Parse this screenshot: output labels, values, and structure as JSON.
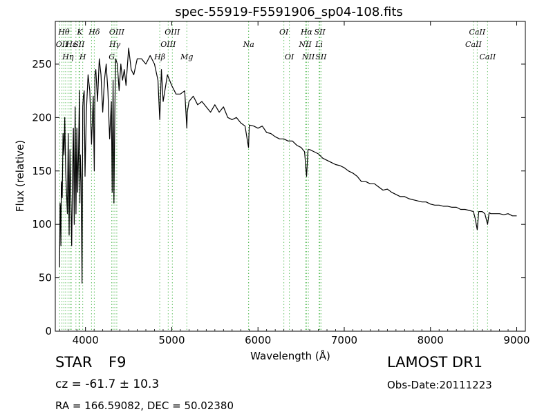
{
  "chart_data": {
    "type": "line",
    "title": "spec-55919-F5591906_sp04-108.fits",
    "xlabel": "Wavelength (Å)",
    "ylabel": "Flux (relative)",
    "xlim": [
      3650,
      9100
    ],
    "ylim": [
      0,
      290
    ],
    "xticks": [
      4000,
      5000,
      6000,
      7000,
      8000,
      9000
    ],
    "yticks": [
      0,
      50,
      100,
      150,
      200,
      250
    ],
    "grid": false,
    "line_color": "#000000",
    "marker_color": "#5fbf5f",
    "series": [
      {
        "x": [
          3700,
          3705,
          3710,
          3715,
          3720,
          3730,
          3740,
          3750,
          3760,
          3770,
          3780,
          3790,
          3800,
          3810,
          3820,
          3830,
          3840,
          3850,
          3860,
          3870,
          3880,
          3890,
          3900,
          3910,
          3920,
          3930,
          3935,
          3940,
          3950,
          3960,
          3968,
          3975,
          3985,
          3995,
          4010,
          4030,
          4050,
          4070,
          4090,
          4102,
          4110,
          4120,
          4140,
          4160,
          4180,
          4200,
          4220,
          4240,
          4260,
          4280,
          4300,
          4310,
          4320,
          4330,
          4340,
          4350,
          4370,
          4390,
          4410,
          4430,
          4450,
          4470,
          4500,
          4530,
          4560,
          4600,
          4650,
          4700,
          4750,
          4800,
          4840,
          4861,
          4880,
          4900,
          4950,
          5000,
          5050,
          5100,
          5150,
          5175,
          5180,
          5200,
          5250,
          5300,
          5350,
          5400,
          5450,
          5500,
          5550,
          5600,
          5650,
          5700,
          5750,
          5800,
          5850,
          5890,
          5900,
          5950,
          6000,
          6050,
          6100,
          6150,
          6200,
          6250,
          6300,
          6350,
          6400,
          6450,
          6500,
          6540,
          6563,
          6580,
          6600,
          6650,
          6700,
          6750,
          6800,
          6850,
          6900,
          6950,
          7000,
          7050,
          7100,
          7150,
          7200,
          7250,
          7300,
          7350,
          7400,
          7450,
          7500,
          7550,
          7600,
          7650,
          7700,
          7750,
          7800,
          7850,
          7900,
          7950,
          8000,
          8050,
          8100,
          8150,
          8200,
          8250,
          8300,
          8350,
          8400,
          8450,
          8498,
          8520,
          8542,
          8560,
          8600,
          8630,
          8662,
          8680,
          8700,
          8750,
          8800,
          8850,
          8900,
          8950,
          9000
        ],
        "y": [
          60,
          120,
          115,
          80,
          140,
          125,
          185,
          165,
          200,
          150,
          130,
          110,
          185,
          90,
          170,
          125,
          80,
          150,
          190,
          100,
          210,
          110,
          190,
          130,
          170,
          225,
          120,
          165,
          140,
          45,
          210,
          220,
          225,
          145,
          205,
          240,
          225,
          175,
          220,
          150,
          240,
          245,
          215,
          255,
          240,
          205,
          235,
          250,
          225,
          180,
          215,
          130,
          235,
          120,
          205,
          255,
          250,
          225,
          250,
          235,
          245,
          230,
          265,
          245,
          240,
          255,
          255,
          250,
          258,
          250,
          235,
          198,
          245,
          215,
          240,
          230,
          222,
          222,
          225,
          190,
          205,
          215,
          220,
          212,
          215,
          210,
          205,
          212,
          205,
          210,
          200,
          198,
          200,
          195,
          192,
          172,
          193,
          192,
          190,
          192,
          186,
          185,
          182,
          180,
          180,
          178,
          178,
          174,
          172,
          168,
          145,
          170,
          170,
          168,
          166,
          162,
          160,
          158,
          156,
          155,
          153,
          150,
          148,
          145,
          140,
          140,
          138,
          138,
          135,
          132,
          133,
          130,
          128,
          126,
          126,
          124,
          123,
          122,
          121,
          121,
          119,
          118,
          118,
          117,
          117,
          116,
          116,
          114,
          114,
          113,
          112,
          105,
          95,
          112,
          112,
          110,
          100,
          111,
          110,
          110,
          110,
          109,
          110,
          108,
          108
        ]
      }
    ],
    "line_markers": {
      "top": [
        {
          "wavelength": 3727,
          "label": "OII",
          "row": 1
        },
        {
          "wavelength": 3750,
          "label": "Hθ",
          "row": 0
        },
        {
          "wavelength": 3797,
          "label": "Hη",
          "row": 2
        },
        {
          "wavelength": 3835,
          "label": "Hε",
          "row": 1
        },
        {
          "wavelength": 3934,
          "label": "K",
          "row": 0
        },
        {
          "wavelength": 3968,
          "label": "H",
          "row": 2
        },
        {
          "wavelength": 3925,
          "label": "SII",
          "row": 1
        },
        {
          "wavelength": 4102,
          "label": "Hδ",
          "row": 0
        },
        {
          "wavelength": 4304,
          "label": "G",
          "row": 2
        },
        {
          "wavelength": 4340,
          "label": "Hγ",
          "row": 1
        },
        {
          "wavelength": 4363,
          "label": "OIII",
          "row": 0
        },
        {
          "wavelength": 4861,
          "label": "Hβ",
          "row": 2
        },
        {
          "wavelength": 4959,
          "label": "OIII",
          "row": 1
        },
        {
          "wavelength": 5007,
          "label": "OIII",
          "row": 0
        },
        {
          "wavelength": 5175,
          "label": "Mg",
          "row": 2
        },
        {
          "wavelength": 5892,
          "label": "Na",
          "row": 1
        },
        {
          "wavelength": 6300,
          "label": "OI",
          "row": 0
        },
        {
          "wavelength": 6364,
          "label": "OI",
          "row": 2
        },
        {
          "wavelength": 6563,
          "label": "Hα",
          "row": 0
        },
        {
          "wavelength": 6548,
          "label": "NII",
          "row": 1
        },
        {
          "wavelength": 6584,
          "label": "NII",
          "row": 2
        },
        {
          "wavelength": 6708,
          "label": "Li",
          "row": 1
        },
        {
          "wavelength": 6717,
          "label": "SII",
          "row": 0
        },
        {
          "wavelength": 6731,
          "label": "SII",
          "row": 2
        },
        {
          "wavelength": 8498,
          "label": "CaII",
          "row": 1
        },
        {
          "wavelength": 8542,
          "label": "CaII",
          "row": 0
        },
        {
          "wavelength": 8662,
          "label": "CaII",
          "row": 2
        }
      ],
      "extra_lines": [
        3700,
        3770,
        3889,
        3820,
        4070,
        4320,
        5890,
        6716
      ]
    }
  },
  "info": {
    "class_label": "STAR",
    "subclass_label": "F9",
    "cz_text": "cz = -61.7  ± 10.3",
    "coord_text": "RA = 166.59082, DEC = 50.02380",
    "survey_label": "LAMOST DR1",
    "obs_date_text": "Obs-Date:20111223"
  }
}
